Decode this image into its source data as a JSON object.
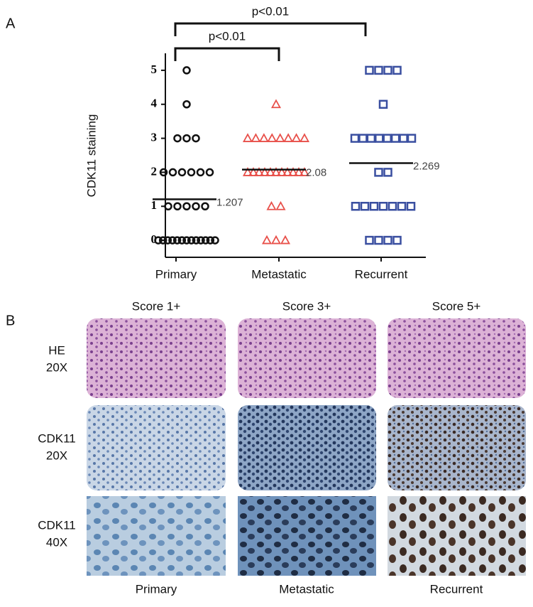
{
  "panel_labels": [
    "A",
    "B"
  ],
  "chart_data": {
    "type": "scatter",
    "ylabel": "CDK11 staining",
    "categories": [
      "Primary",
      "Metastatic",
      "Recurrent"
    ],
    "series": [
      {
        "name": "Primary",
        "color": "#111111",
        "marker": "circle",
        "values": [
          5,
          4,
          3,
          3,
          3,
          2,
          2,
          2,
          2,
          2,
          2,
          1,
          1,
          1,
          1,
          1,
          0,
          0,
          0,
          0,
          0,
          0,
          0,
          0,
          0,
          0,
          0,
          0,
          0
        ]
      },
      {
        "name": "Metastatic",
        "color": "#e8504a",
        "marker": "triangle",
        "values": [
          4,
          3,
          3,
          3,
          3,
          3,
          3,
          3,
          3,
          2,
          2,
          2,
          2,
          2,
          2,
          2,
          2,
          2,
          2,
          2,
          1,
          1,
          0,
          0,
          0
        ]
      },
      {
        "name": "Recurrent",
        "color": "#3a4fa0",
        "marker": "square",
        "values": [
          5,
          5,
          5,
          5,
          4,
          3,
          3,
          3,
          3,
          3,
          3,
          3,
          3,
          2,
          2,
          1,
          1,
          1,
          1,
          1,
          1,
          1,
          0,
          0,
          0,
          0
        ]
      }
    ],
    "means": [
      1.207,
      2.08,
      2.269
    ],
    "ylim": [
      -0.5,
      5.5
    ],
    "yticks": [
      0,
      1,
      2,
      3,
      4,
      5
    ],
    "annotations": [
      {
        "text": "p<0.01",
        "between": [
          "Primary",
          "Metastatic"
        ]
      },
      {
        "text": "p<0.01",
        "between": [
          "Primary",
          "Recurrent"
        ]
      }
    ]
  },
  "image_panel": {
    "columns": [
      "Score 1+",
      "Score 3+",
      "Score 5+"
    ],
    "rows": [
      [
        "HE",
        "20X"
      ],
      [
        "CDK11",
        "20X"
      ],
      [
        "CDK11",
        "40X"
      ]
    ],
    "footer": [
      "Primary",
      "Metastatic",
      "Recurrent"
    ]
  }
}
